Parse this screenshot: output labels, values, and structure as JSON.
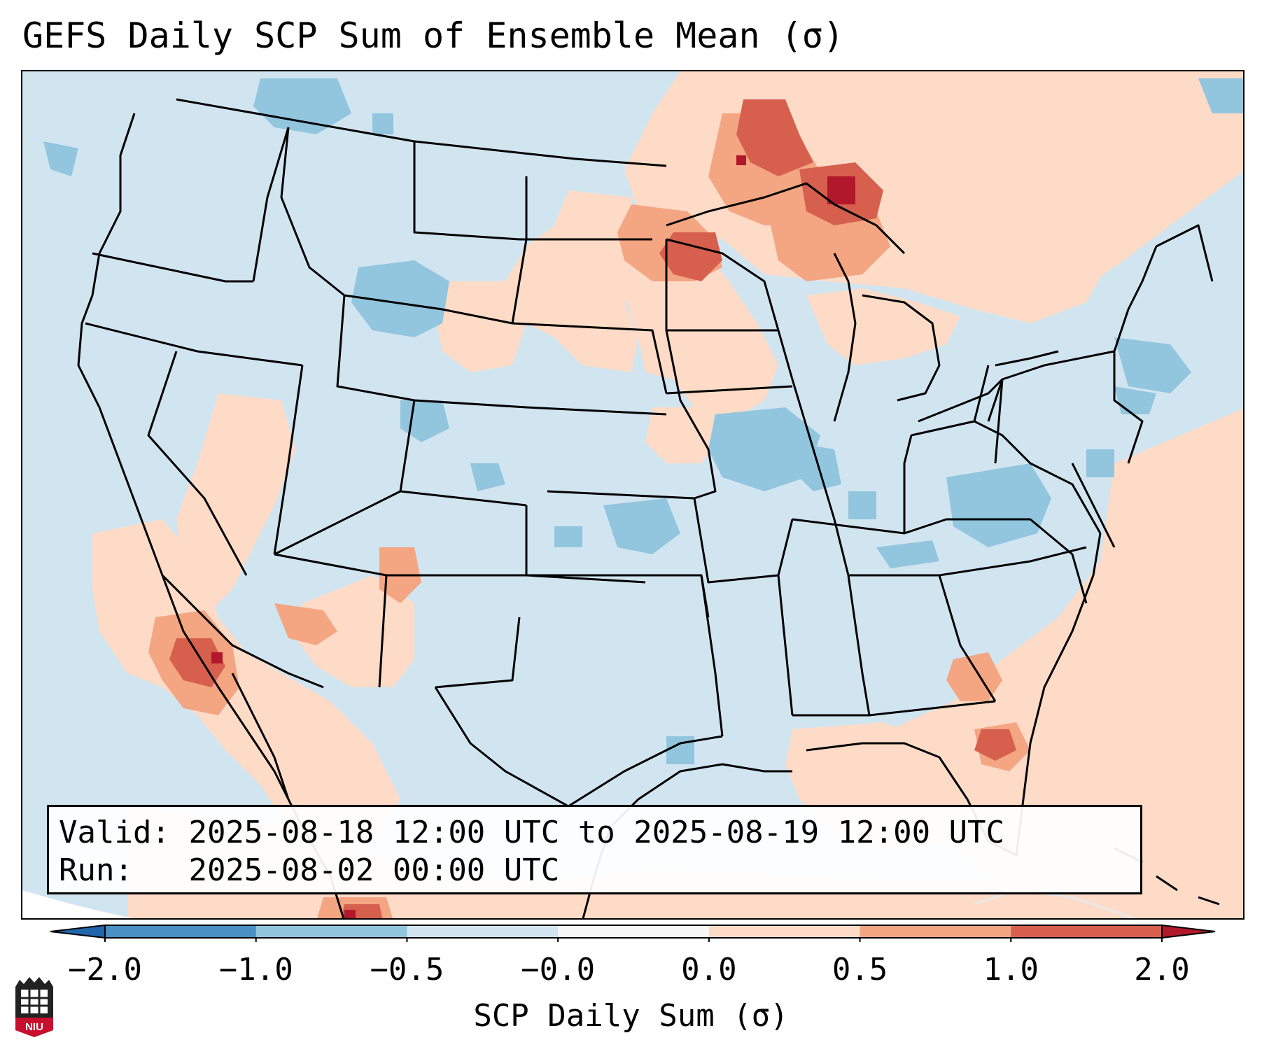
{
  "title": "GEFS Daily SCP Sum of Ensemble Mean (σ)",
  "info": {
    "valid_label": "Valid:",
    "valid_value": "2025-08-18 12:00 UTC to 2025-08-19 12:00 UTC",
    "run_label": "Run:",
    "run_value": "2025-08-02 00:00 UTC"
  },
  "colorbar": {
    "label": "SCP Daily Sum (σ)",
    "ticks": [
      "−2.0",
      "−1.0",
      "−0.5",
      "−0.0",
      "0.0",
      "0.5",
      "1.0",
      "2.0"
    ],
    "bins": [
      {
        "range": "-2.0 to -1.0",
        "color": "#4a90c4"
      },
      {
        "range": "-1.0 to -0.5",
        "color": "#92c5de"
      },
      {
        "range": "-0.5 to -0.0",
        "color": "#d1e5f0"
      },
      {
        "range": "-0.0 to 0.0",
        "color": "#f7f7f7"
      },
      {
        "range": "0.0 to 0.5",
        "color": "#fddbc7"
      },
      {
        "range": "0.5 to 1.0",
        "color": "#f4a582"
      },
      {
        "range": "1.0 to 2.0",
        "color": "#d6604d"
      }
    ],
    "under_color": "#2166ac",
    "over_color": "#b2182b"
  },
  "logo": {
    "text": "NIU"
  }
}
